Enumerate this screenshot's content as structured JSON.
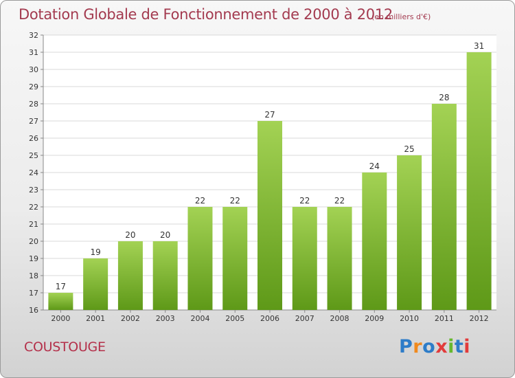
{
  "header": {
    "title": "Dotation Globale de Fonctionnement de 2000 à 2012",
    "unit": "(en milliers d'€)"
  },
  "footer": {
    "commune": "COUSTOUGE",
    "logo_text": "Proxiti"
  },
  "colors": {
    "title": "#a33a4f",
    "bar_top": "#a3d254",
    "bar_bottom": "#5e9918",
    "logo": [
      "#2d7cc8",
      "#f08a1e",
      "#2d7cc8",
      "#e23b3b",
      "#66b82e",
      "#2d7cc8",
      "#e23b3b"
    ]
  },
  "chart_data": {
    "type": "bar",
    "categories": [
      "2000",
      "2001",
      "2002",
      "2003",
      "2004",
      "2005",
      "2006",
      "2007",
      "2008",
      "2009",
      "2010",
      "2011",
      "2012"
    ],
    "values": [
      17,
      19,
      20,
      20,
      22,
      22,
      27,
      22,
      22,
      24,
      25,
      28,
      31
    ],
    "data_labels": [
      "17",
      "19",
      "20",
      "20",
      "22",
      "22",
      "27",
      "22",
      "22",
      "24",
      "25",
      "28",
      "31"
    ],
    "yticks": [
      16,
      17,
      18,
      19,
      20,
      21,
      22,
      23,
      24,
      25,
      26,
      27,
      28,
      29,
      30,
      31,
      32
    ],
    "ylim": [
      16,
      32
    ],
    "grid": true,
    "legend": "none",
    "xlabel": "",
    "ylabel": ""
  }
}
